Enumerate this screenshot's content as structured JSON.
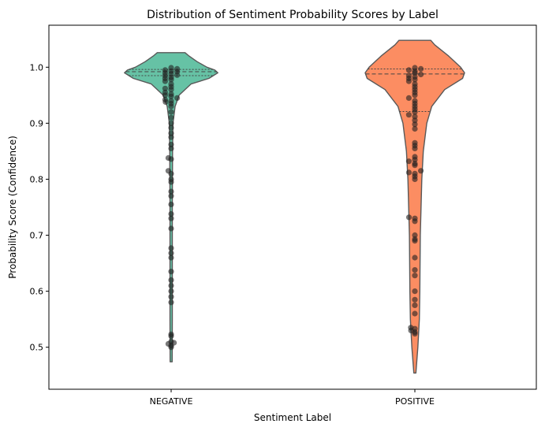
{
  "chart_data": {
    "type": "violin",
    "title": "Distribution of Sentiment Probability Scores by Label",
    "xlabel": "Sentiment Label",
    "ylabel": "Probability Score (Confidence)",
    "categories": [
      "NEGATIVE",
      "POSITIVE"
    ],
    "ylim": [
      0.425,
      1.075
    ],
    "yticks": [
      0.5,
      0.6,
      0.7,
      0.8,
      0.9,
      1.0
    ],
    "ytick_labels": [
      "0.5",
      "0.6",
      "0.7",
      "0.8",
      "0.9",
      "1.0"
    ],
    "grid": false,
    "colors": {
      "NEGATIVE": "#66c2a5",
      "POSITIVE": "#fc8d62",
      "outline": "#595959",
      "points": "#222222"
    },
    "series": [
      {
        "category": "NEGATIVE",
        "violin_profile": [
          [
            0.474,
            0.01
          ],
          [
            0.55,
            0.012
          ],
          [
            0.65,
            0.012
          ],
          [
            0.75,
            0.012
          ],
          [
            0.85,
            0.014
          ],
          [
            0.9,
            0.018
          ],
          [
            0.93,
            0.04
          ],
          [
            0.95,
            0.08
          ],
          [
            0.97,
            0.2
          ],
          [
            0.98,
            0.38
          ],
          [
            0.99,
            0.47
          ],
          [
            0.995,
            0.44
          ],
          [
            1.0,
            0.36
          ],
          [
            1.01,
            0.26
          ],
          [
            1.02,
            0.18
          ],
          [
            1.026,
            0.14
          ]
        ],
        "quartiles": [
          0.985,
          0.992,
          0.996
        ],
        "points": [
          0.5,
          0.503,
          0.506,
          0.508,
          0.51,
          0.52,
          0.523,
          0.58,
          0.59,
          0.6,
          0.61,
          0.62,
          0.635,
          0.66,
          0.668,
          0.677,
          0.712,
          0.73,
          0.738,
          0.755,
          0.77,
          0.778,
          0.795,
          0.8,
          0.81,
          0.815,
          0.836,
          0.838,
          0.855,
          0.862,
          0.875,
          0.882,
          0.892,
          0.9,
          0.91,
          0.92,
          0.93,
          0.935,
          0.938,
          0.94,
          0.942,
          0.945,
          0.948,
          0.95,
          0.952,
          0.955,
          0.96,
          0.962,
          0.965,
          0.97,
          0.975,
          0.978,
          0.98,
          0.982,
          0.985,
          0.986,
          0.988,
          0.99,
          0.992,
          0.993,
          0.995,
          0.997,
          0.999
        ]
      },
      {
        "category": "POSITIVE",
        "violin_profile": [
          [
            0.454,
            0.01
          ],
          [
            0.5,
            0.03
          ],
          [
            0.55,
            0.045
          ],
          [
            0.6,
            0.05
          ],
          [
            0.7,
            0.055
          ],
          [
            0.8,
            0.07
          ],
          [
            0.85,
            0.085
          ],
          [
            0.9,
            0.12
          ],
          [
            0.93,
            0.17
          ],
          [
            0.96,
            0.3
          ],
          [
            0.98,
            0.48
          ],
          [
            0.99,
            0.5
          ],
          [
            1.0,
            0.46
          ],
          [
            1.02,
            0.34
          ],
          [
            1.04,
            0.2
          ],
          [
            1.048,
            0.16
          ]
        ],
        "quartiles": [
          0.921,
          0.988,
          0.997
        ],
        "points": [
          0.524,
          0.527,
          0.53,
          0.533,
          0.535,
          0.56,
          0.575,
          0.585,
          0.6,
          0.628,
          0.638,
          0.66,
          0.69,
          0.693,
          0.7,
          0.725,
          0.73,
          0.732,
          0.8,
          0.805,
          0.81,
          0.812,
          0.815,
          0.825,
          0.828,
          0.832,
          0.835,
          0.84,
          0.855,
          0.86,
          0.865,
          0.89,
          0.898,
          0.905,
          0.912,
          0.915,
          0.92,
          0.925,
          0.93,
          0.935,
          0.94,
          0.945,
          0.95,
          0.955,
          0.96,
          0.965,
          0.97,
          0.975,
          0.978,
          0.98,
          0.983,
          0.985,
          0.987,
          0.99,
          0.993,
          0.995,
          0.997,
          0.999
        ]
      }
    ]
  }
}
